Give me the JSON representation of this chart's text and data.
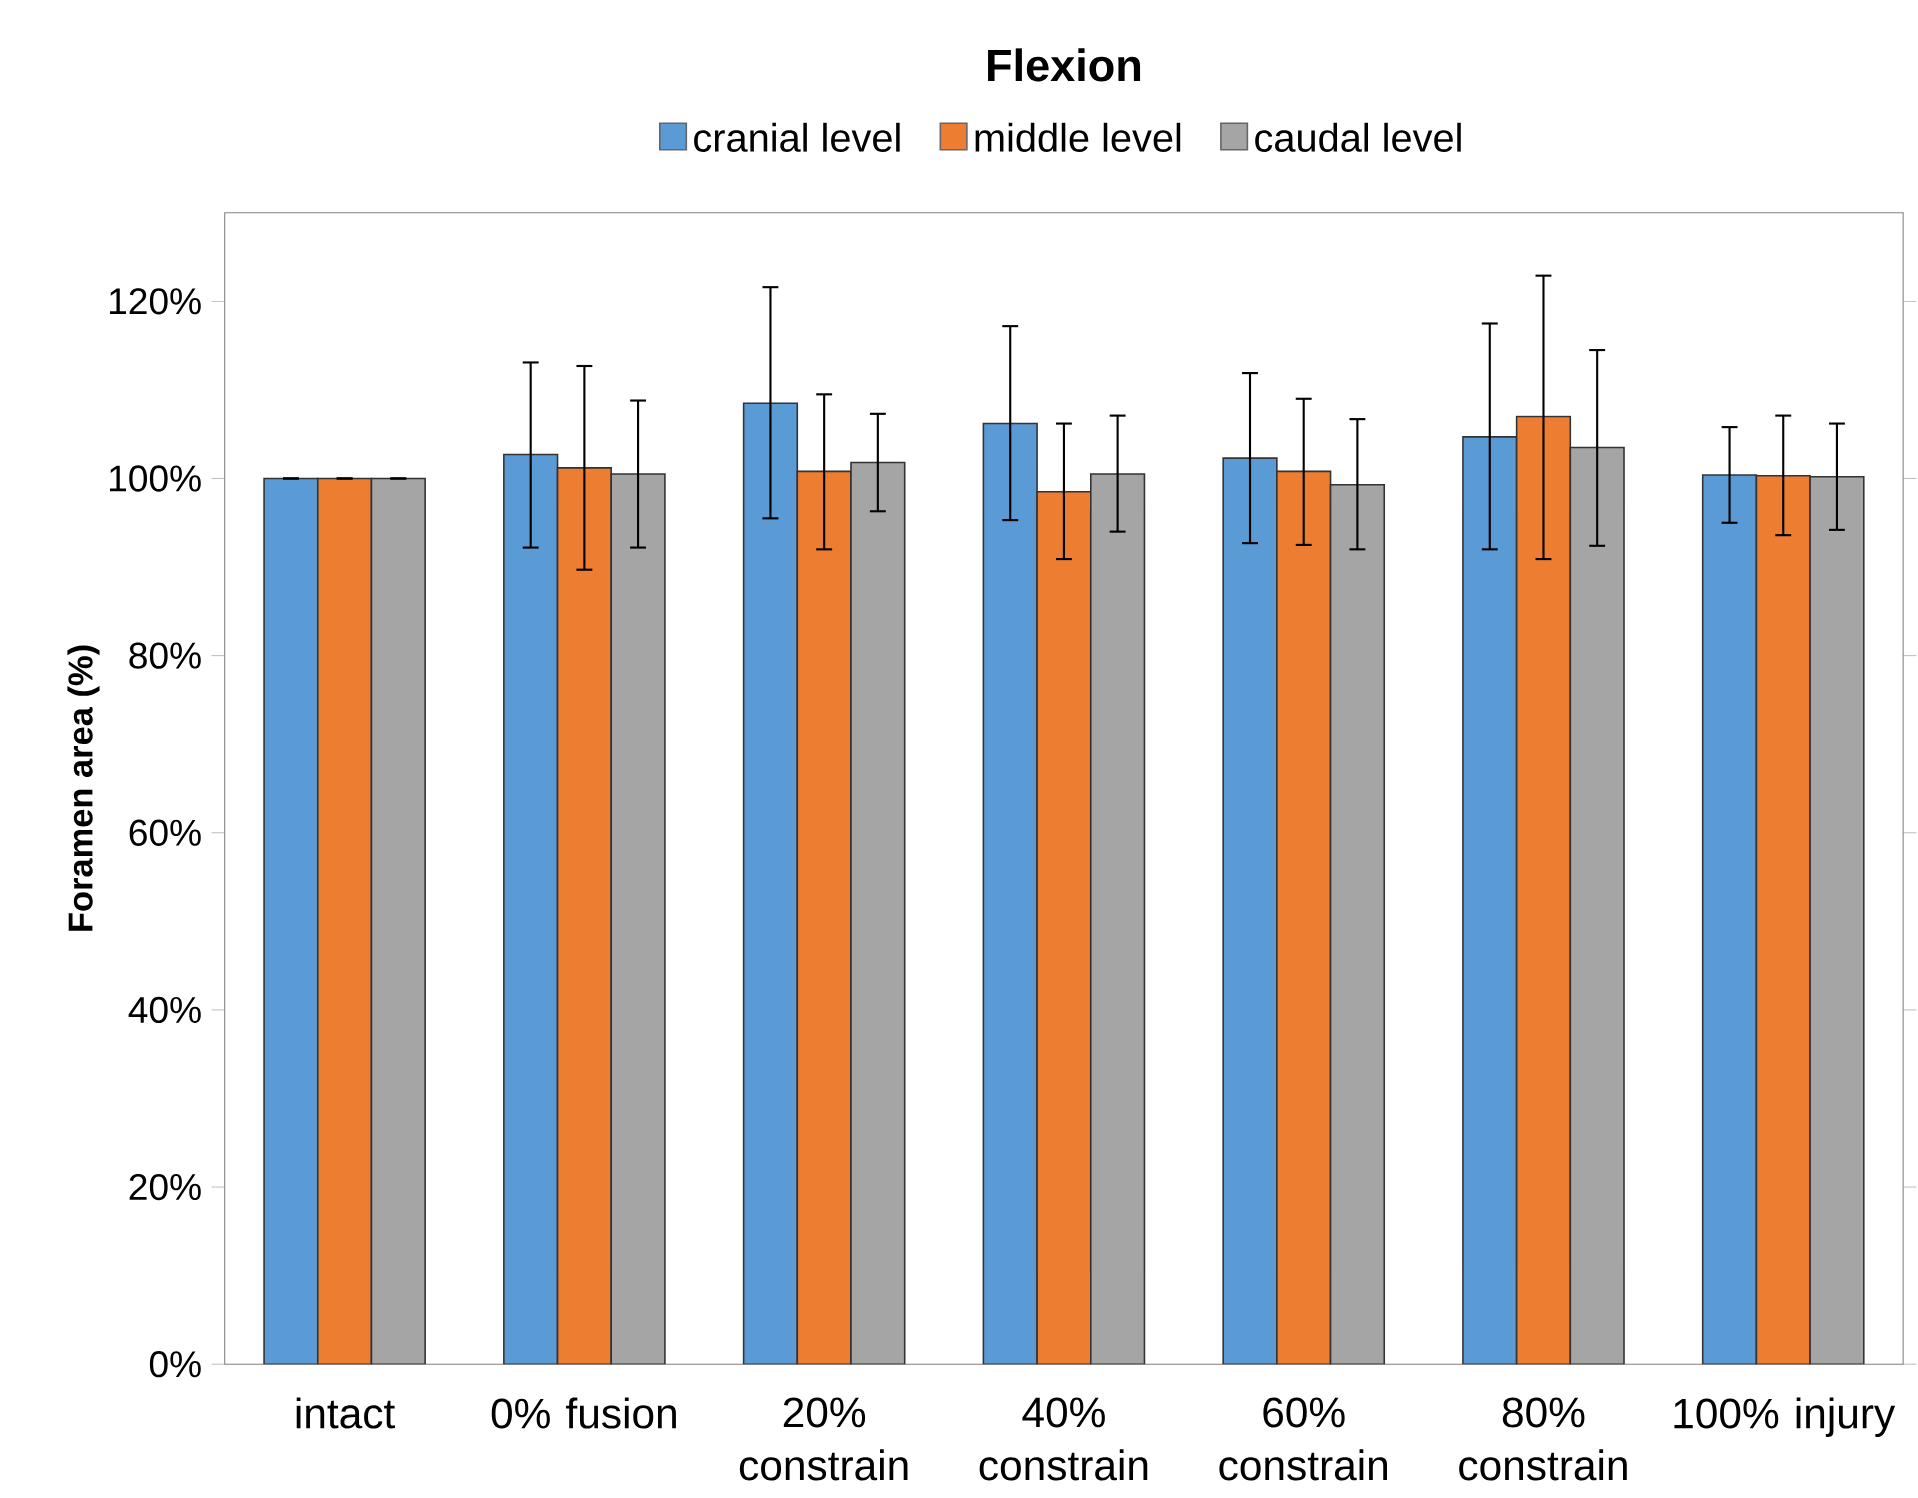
{
  "chart_data": {
    "type": "bar",
    "title": "Flexion",
    "ylabel": "Foramen area (%)",
    "categories": [
      "intact",
      "0% fusion",
      "20% constrain",
      "40% constrain",
      "60% constrain",
      "80% constrain",
      "100% injury"
    ],
    "series": [
      {
        "name": "cranial level",
        "color": "#5b9bd5",
        "values": [
          100,
          102.7,
          108.5,
          106.2,
          102.3,
          104.7,
          100.4
        ],
        "errors": [
          [
            100,
            100
          ],
          [
            92.2,
            113.1
          ],
          [
            95.5,
            121.6
          ],
          [
            95.3,
            117.2
          ],
          [
            92.7,
            111.9
          ],
          [
            92.0,
            117.5
          ],
          [
            95.0,
            105.8
          ]
        ]
      },
      {
        "name": "middle level",
        "color": "#ed7d31",
        "values": [
          100,
          101.2,
          100.8,
          98.5,
          100.8,
          107.0,
          100.3
        ],
        "errors": [
          [
            100,
            100
          ],
          [
            89.7,
            112.7
          ],
          [
            92.0,
            109.5
          ],
          [
            90.9,
            106.2
          ],
          [
            92.5,
            109.0
          ],
          [
            90.9,
            122.9
          ],
          [
            93.6,
            107.1
          ]
        ]
      },
      {
        "name": "caudal level",
        "color": "#a5a5a5",
        "values": [
          100,
          100.5,
          101.8,
          100.5,
          99.3,
          103.5,
          100.2
        ],
        "errors": [
          [
            100,
            100
          ],
          [
            92.2,
            108.8
          ],
          [
            96.3,
            107.3
          ],
          [
            94.0,
            107.1
          ],
          [
            92.0,
            106.7
          ],
          [
            92.4,
            114.5
          ],
          [
            94.2,
            106.2
          ]
        ]
      }
    ],
    "ylim": [
      0,
      130
    ],
    "yticks": [
      {
        "value": 0,
        "label": "0%"
      },
      {
        "value": 20,
        "label": "20%"
      },
      {
        "value": 40,
        "label": "40%"
      },
      {
        "value": 60,
        "label": "60%"
      },
      {
        "value": 80,
        "label": "80%"
      },
      {
        "value": 100,
        "label": "100%"
      },
      {
        "value": 120,
        "label": "120%"
      }
    ],
    "legend": "top",
    "grid": false
  }
}
